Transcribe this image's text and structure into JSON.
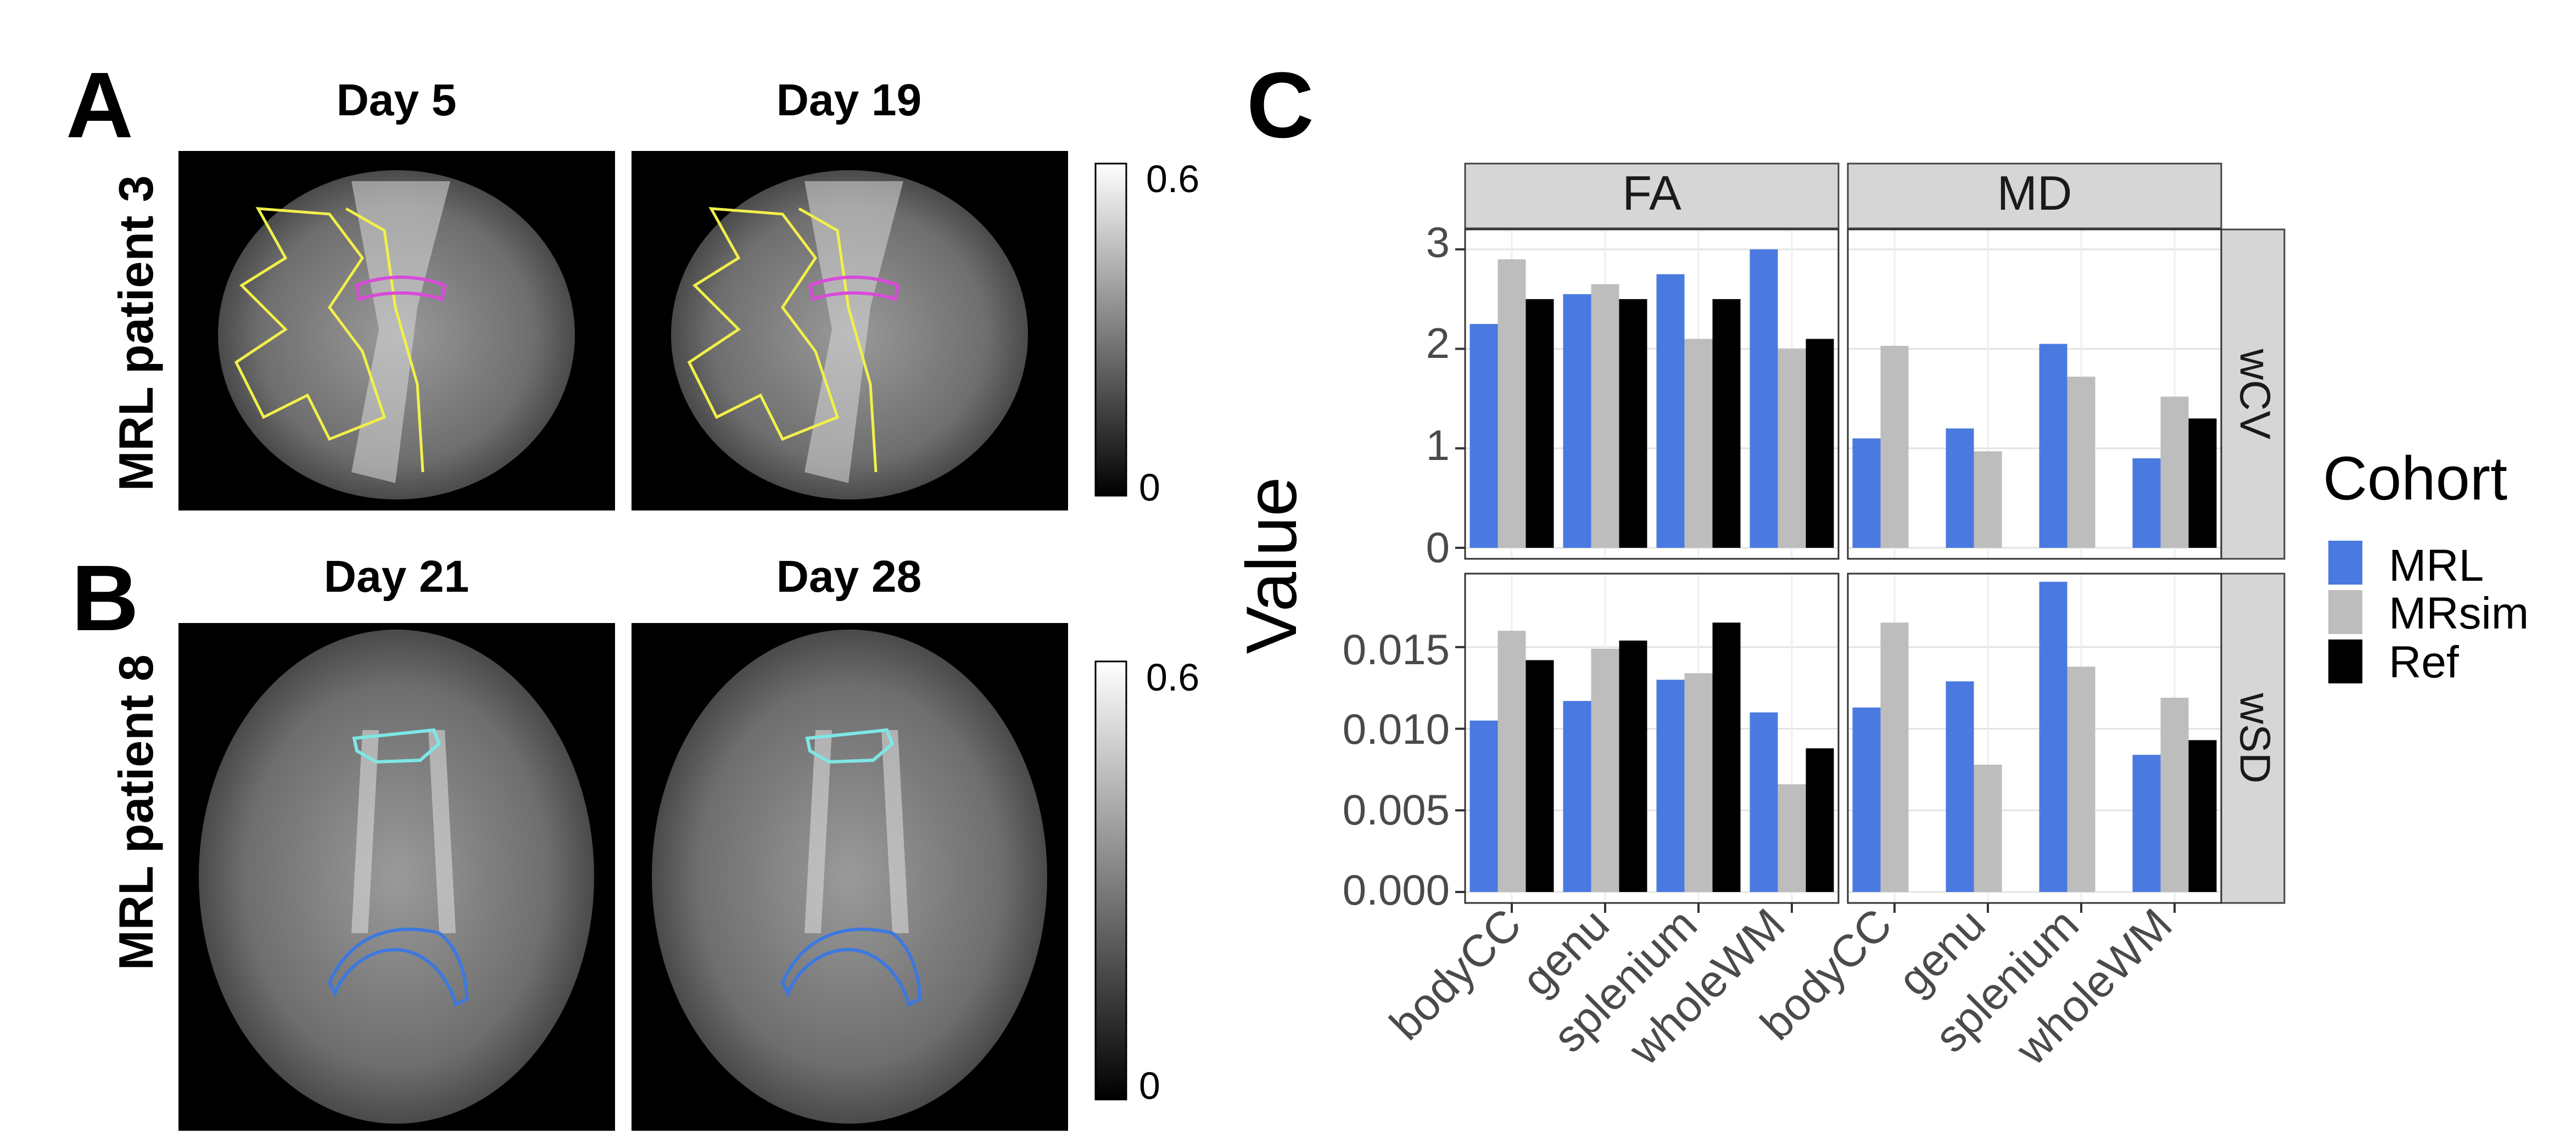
{
  "panel_a": {
    "letter": "A",
    "row_label": "MRL patient 3",
    "images": [
      {
        "title": "Day 5"
      },
      {
        "title": "Day 19"
      }
    ],
    "colorbar": {
      "max_label": "0.6",
      "min_label": "0"
    },
    "roi_colors": {
      "wholeWM": "#f2f04a",
      "bodyCC": "#d84bd8"
    }
  },
  "panel_b": {
    "letter": "B",
    "row_label": "MRL patient 8",
    "images": [
      {
        "title": "Day 21"
      },
      {
        "title": "Day 28"
      }
    ],
    "colorbar": {
      "max_label": "0.6",
      "min_label": "0"
    },
    "roi_colors": {
      "genu": "#7fe6e6",
      "splenium": "#3c78e0"
    }
  },
  "panel_c": {
    "letter": "C",
    "y_axis_label": "Value",
    "legend_title": "Cohort",
    "x_tick_labels": [
      "bodyCC",
      "genu",
      "splenium",
      "wholeWM"
    ],
    "column_strips": [
      "FA",
      "MD"
    ],
    "row_strips": [
      "wCV",
      "wSD"
    ],
    "y_ticks": {
      "wCV": [
        "0",
        "1",
        "2",
        "3"
      ],
      "wSD": [
        "0.000",
        "0.005",
        "0.010",
        "0.015"
      ]
    }
  },
  "chart_data": {
    "type": "bar",
    "facets": "grid",
    "categories": [
      "bodyCC",
      "genu",
      "splenium",
      "wholeWM"
    ],
    "series_names": [
      "MRL",
      "MRsim",
      "Ref"
    ],
    "colors": {
      "MRL": "#4a7ae0",
      "MRsim": "#bdbdbd",
      "Ref": "#000000"
    },
    "xlabel": "",
    "ylabel": "Value",
    "legend_title": "Cohort",
    "legend_position": "right",
    "grid": true,
    "panels": [
      {
        "metric": "FA",
        "stat": "wCV",
        "ylim": [
          0,
          3.2
        ],
        "series": [
          {
            "name": "MRL",
            "values": [
              2.25,
              2.55,
              2.75,
              3.0
            ]
          },
          {
            "name": "MRsim",
            "values": [
              2.9,
              2.65,
              2.1,
              2.0
            ]
          },
          {
            "name": "Ref",
            "values": [
              2.5,
              2.5,
              2.5,
              2.1
            ]
          }
        ]
      },
      {
        "metric": "MD",
        "stat": "wCV",
        "ylim": [
          0,
          3.2
        ],
        "series": [
          {
            "name": "MRL",
            "values": [
              1.1,
              1.2,
              2.05,
              0.9
            ]
          },
          {
            "name": "MRsim",
            "values": [
              2.03,
              0.97,
              1.72,
              1.52
            ]
          },
          {
            "name": "Ref",
            "values": [
              null,
              null,
              null,
              1.3
            ]
          }
        ]
      },
      {
        "metric": "FA",
        "stat": "wSD",
        "ylim": [
          0,
          0.0195
        ],
        "series": [
          {
            "name": "MRL",
            "values": [
              0.0105,
              0.0117,
              0.013,
              0.011
            ]
          },
          {
            "name": "MRsim",
            "values": [
              0.016,
              0.0149,
              0.0134,
              0.0066
            ]
          },
          {
            "name": "Ref",
            "values": [
              0.0142,
              0.0154,
              0.0165,
              0.0088
            ]
          }
        ]
      },
      {
        "metric": "MD",
        "stat": "wSD",
        "ylim": [
          0,
          0.0195
        ],
        "series": [
          {
            "name": "MRL",
            "values": [
              0.0113,
              0.0129,
              0.019,
              0.0084
            ]
          },
          {
            "name": "MRsim",
            "values": [
              0.0165,
              0.0078,
              0.0138,
              0.0119
            ]
          },
          {
            "name": "Ref",
            "values": [
              null,
              null,
              null,
              0.0093
            ]
          }
        ]
      }
    ]
  }
}
